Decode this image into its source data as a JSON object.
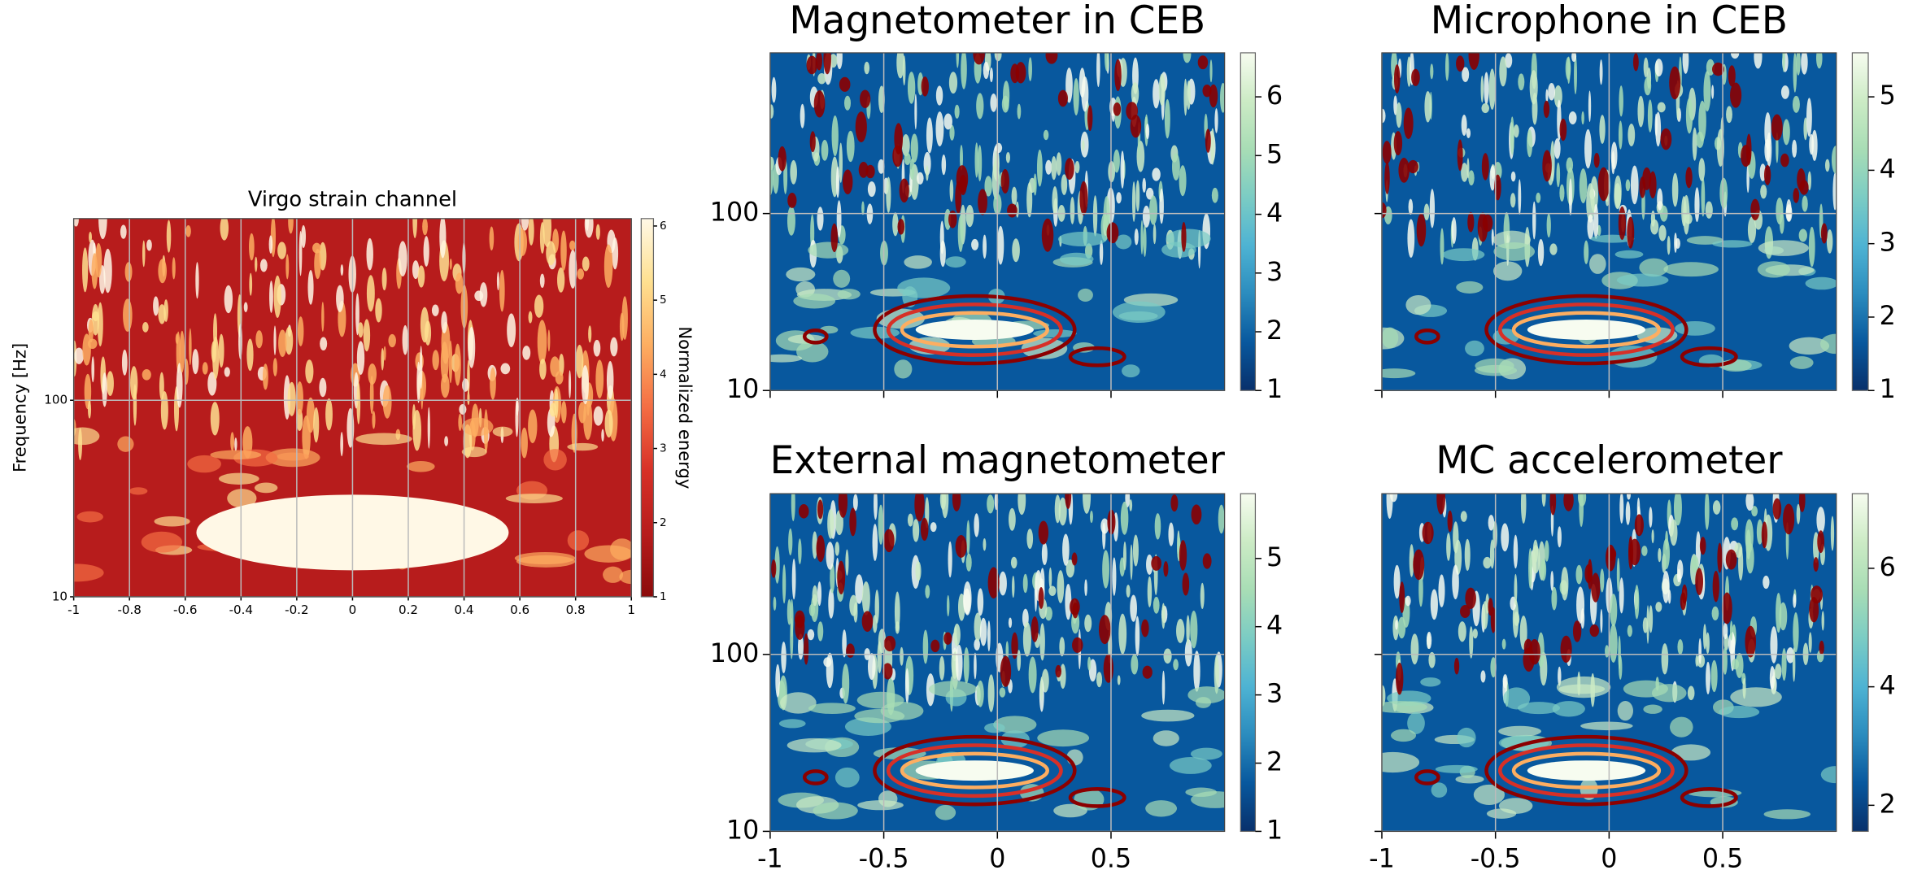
{
  "chart_data": [
    {
      "type": "heatmap",
      "title": "Virgo strain channel",
      "ylabel": "Frequency [Hz]",
      "colorbar_label": "Normalized energy",
      "xlim": [
        -1,
        1
      ],
      "xticks": [
        -1,
        -0.8,
        -0.6,
        -0.4,
        -0.2,
        0,
        0.2,
        0.4,
        0.6,
        0.8,
        1
      ],
      "ylim": [
        10,
        840
      ],
      "yticks": [
        10,
        100
      ],
      "yscale": "log",
      "grid": true,
      "clim": [
        1,
        6.1
      ],
      "cticks": [
        1,
        2,
        3,
        4,
        5,
        6
      ],
      "colormap": [
        "#8b0a0a",
        "#b71c1c",
        "#d73027",
        "#f46d43",
        "#fdae61",
        "#fee090",
        "#fff8e6"
      ]
    },
    {
      "type": "heatmap",
      "title": "Magnetometer in CEB",
      "xlim": [
        -1,
        1
      ],
      "xticks": [
        -1,
        -0.5,
        0,
        0.5
      ],
      "ylim": [
        10,
        810
      ],
      "yticks": [
        10,
        100
      ],
      "yscale": "log",
      "grid": true,
      "clim": [
        1,
        6.75
      ],
      "cticks": [
        1,
        2,
        3,
        4,
        5,
        6
      ],
      "colormap": [
        "#08306b",
        "#08589e",
        "#2b8cbe",
        "#4eb3d3",
        "#7bccc4",
        "#a8ddb5",
        "#ccebc5",
        "#f7fcf0"
      ]
    },
    {
      "type": "heatmap",
      "title": "Microphone in CEB",
      "xlim": [
        -1,
        1
      ],
      "xticks": [
        -1,
        -0.5,
        0,
        0.5
      ],
      "ylim": [
        10,
        810
      ],
      "yticks": [
        10,
        100
      ],
      "yscale": "log",
      "grid": true,
      "clim": [
        1,
        5.6
      ],
      "cticks": [
        1,
        2,
        3,
        4,
        5
      ],
      "colormap": [
        "#08306b",
        "#08589e",
        "#2b8cbe",
        "#4eb3d3",
        "#7bccc4",
        "#a8ddb5",
        "#ccebc5",
        "#f7fcf0"
      ]
    },
    {
      "type": "heatmap",
      "title": "External magnetometer",
      "xlim": [
        -1,
        1
      ],
      "xticks": [
        -1,
        -0.5,
        0,
        0.5
      ],
      "ylim": [
        10,
        810
      ],
      "yticks": [
        10,
        100
      ],
      "yscale": "log",
      "grid": true,
      "clim": [
        1,
        5.95
      ],
      "cticks": [
        1,
        2,
        3,
        4,
        5
      ],
      "colormap": [
        "#08306b",
        "#08589e",
        "#2b8cbe",
        "#4eb3d3",
        "#7bccc4",
        "#a8ddb5",
        "#ccebc5",
        "#f7fcf0"
      ]
    },
    {
      "type": "heatmap",
      "title": "MC accelerometer",
      "xlim": [
        -1,
        1
      ],
      "xticks": [
        -1,
        -0.5,
        0,
        0.5
      ],
      "ylim": [
        10,
        810
      ],
      "yticks": [
        10,
        100
      ],
      "yscale": "log",
      "grid": true,
      "clim": [
        1.56,
        7.26
      ],
      "cticks": [
        2,
        4,
        6
      ],
      "colormap": [
        "#08306b",
        "#08589e",
        "#2b8cbe",
        "#4eb3d3",
        "#7bccc4",
        "#a8ddb5",
        "#ccebc5",
        "#f7fcf0"
      ]
    }
  ]
}
